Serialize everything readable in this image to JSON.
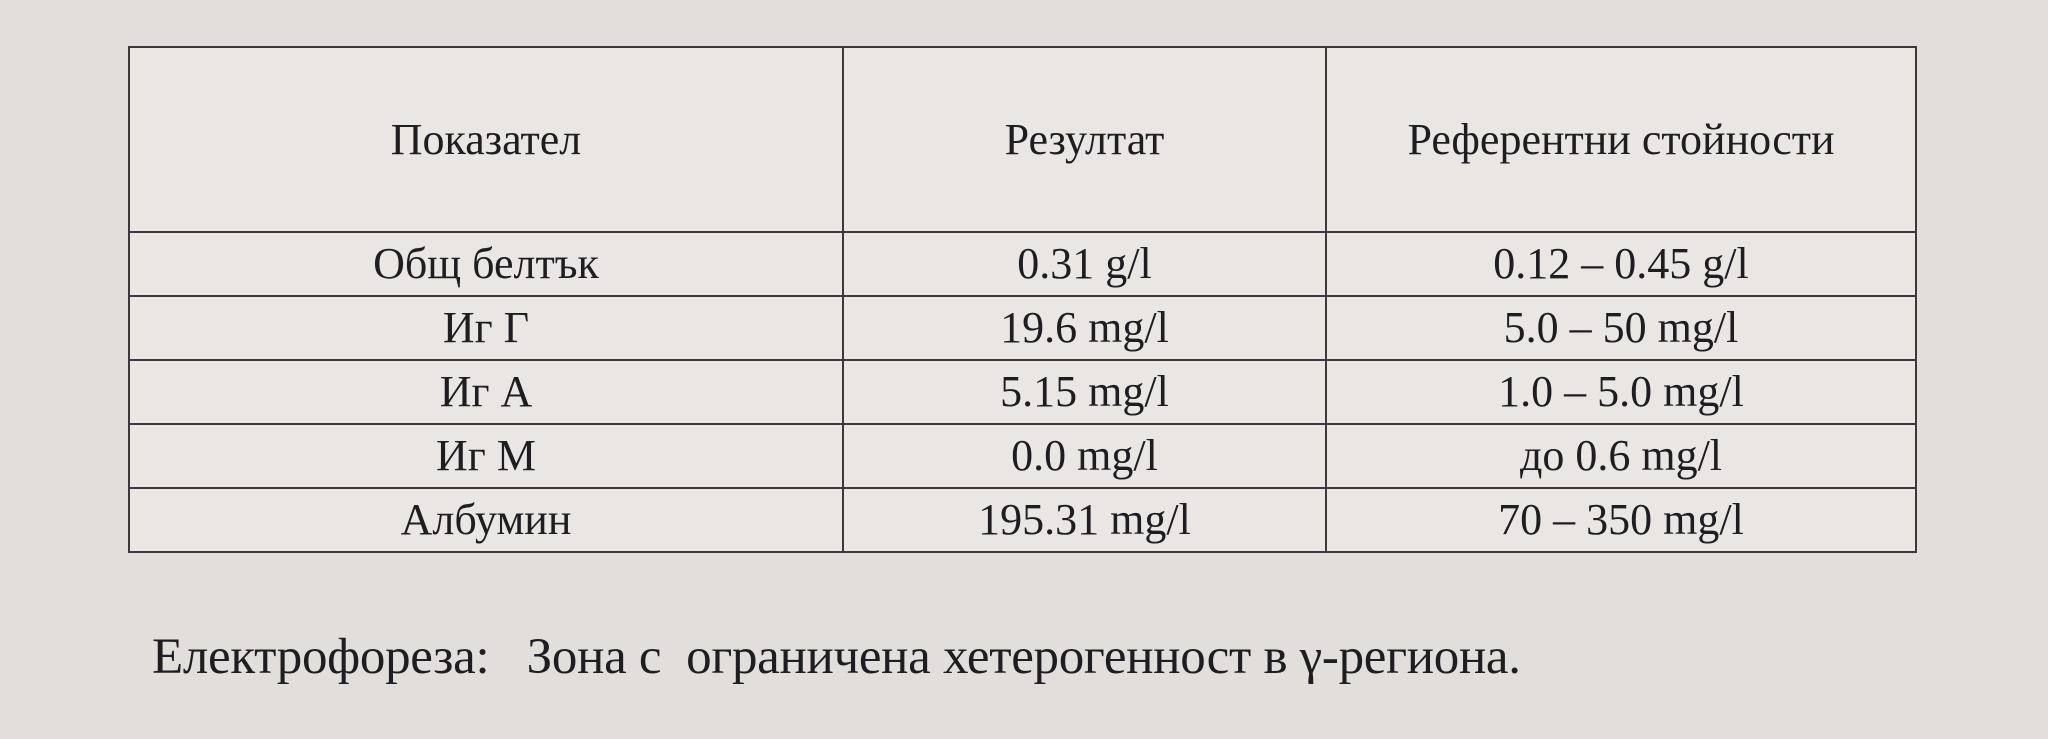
{
  "table": {
    "headers": [
      "Показател",
      "Резултат",
      "Референтни стойности"
    ],
    "rows": [
      [
        "Общ белтък",
        "0.31 g/l",
        "0.12 – 0.45 g/l"
      ],
      [
        "Иг Г",
        "19.6 mg/l",
        "5.0 – 50 mg/l"
      ],
      [
        "Иг А",
        "5.15 mg/l",
        "1.0 – 5.0 mg/l"
      ],
      [
        "Иг М",
        "0.0 mg/l",
        "до  0.6 mg/l"
      ],
      [
        "Албумин",
        "195.31 mg/l",
        "70 – 350 mg/l"
      ]
    ]
  },
  "note": {
    "label": "Електрофореза:",
    "text": "Зона с  ограничена хетерогенност в γ-региона."
  }
}
